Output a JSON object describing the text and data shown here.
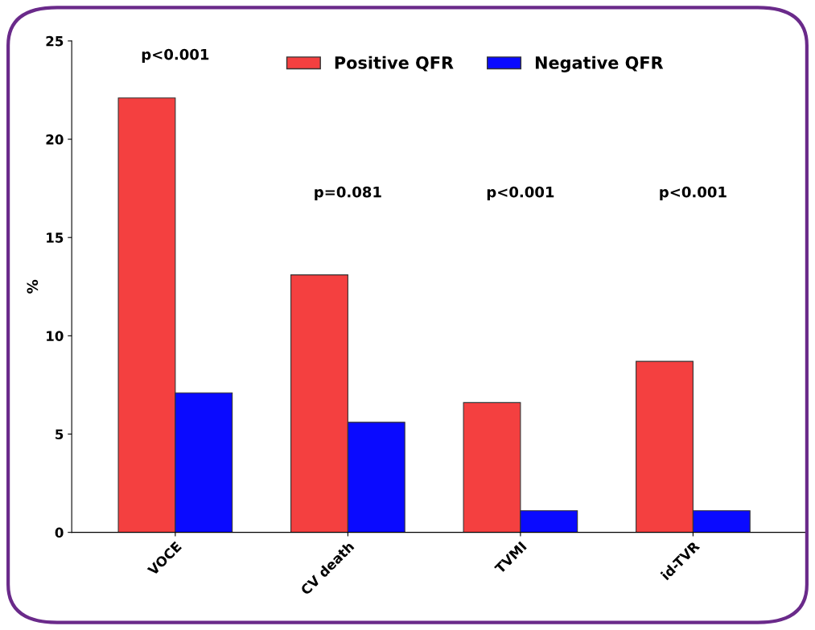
{
  "chart_data": {
    "type": "bar",
    "ylabel": "%",
    "categories": [
      "VOCE",
      "CV death",
      "TVMI",
      "id-TVR"
    ],
    "series": [
      {
        "name": "Positive QFR",
        "color": "#f44040",
        "values": [
          22.1,
          13.1,
          6.6,
          8.7
        ]
      },
      {
        "name": "Negative QFR",
        "color": "#0a0aff",
        "values": [
          7.1,
          5.6,
          1.1,
          1.1
        ]
      }
    ],
    "ylim": [
      0,
      25
    ],
    "yticks": [
      0,
      5,
      10,
      15,
      20,
      25
    ],
    "grid": false,
    "legend": "top",
    "annotations": [
      "p<0.001",
      "p=0.081",
      "p<0.001",
      "p<0.001"
    ]
  }
}
